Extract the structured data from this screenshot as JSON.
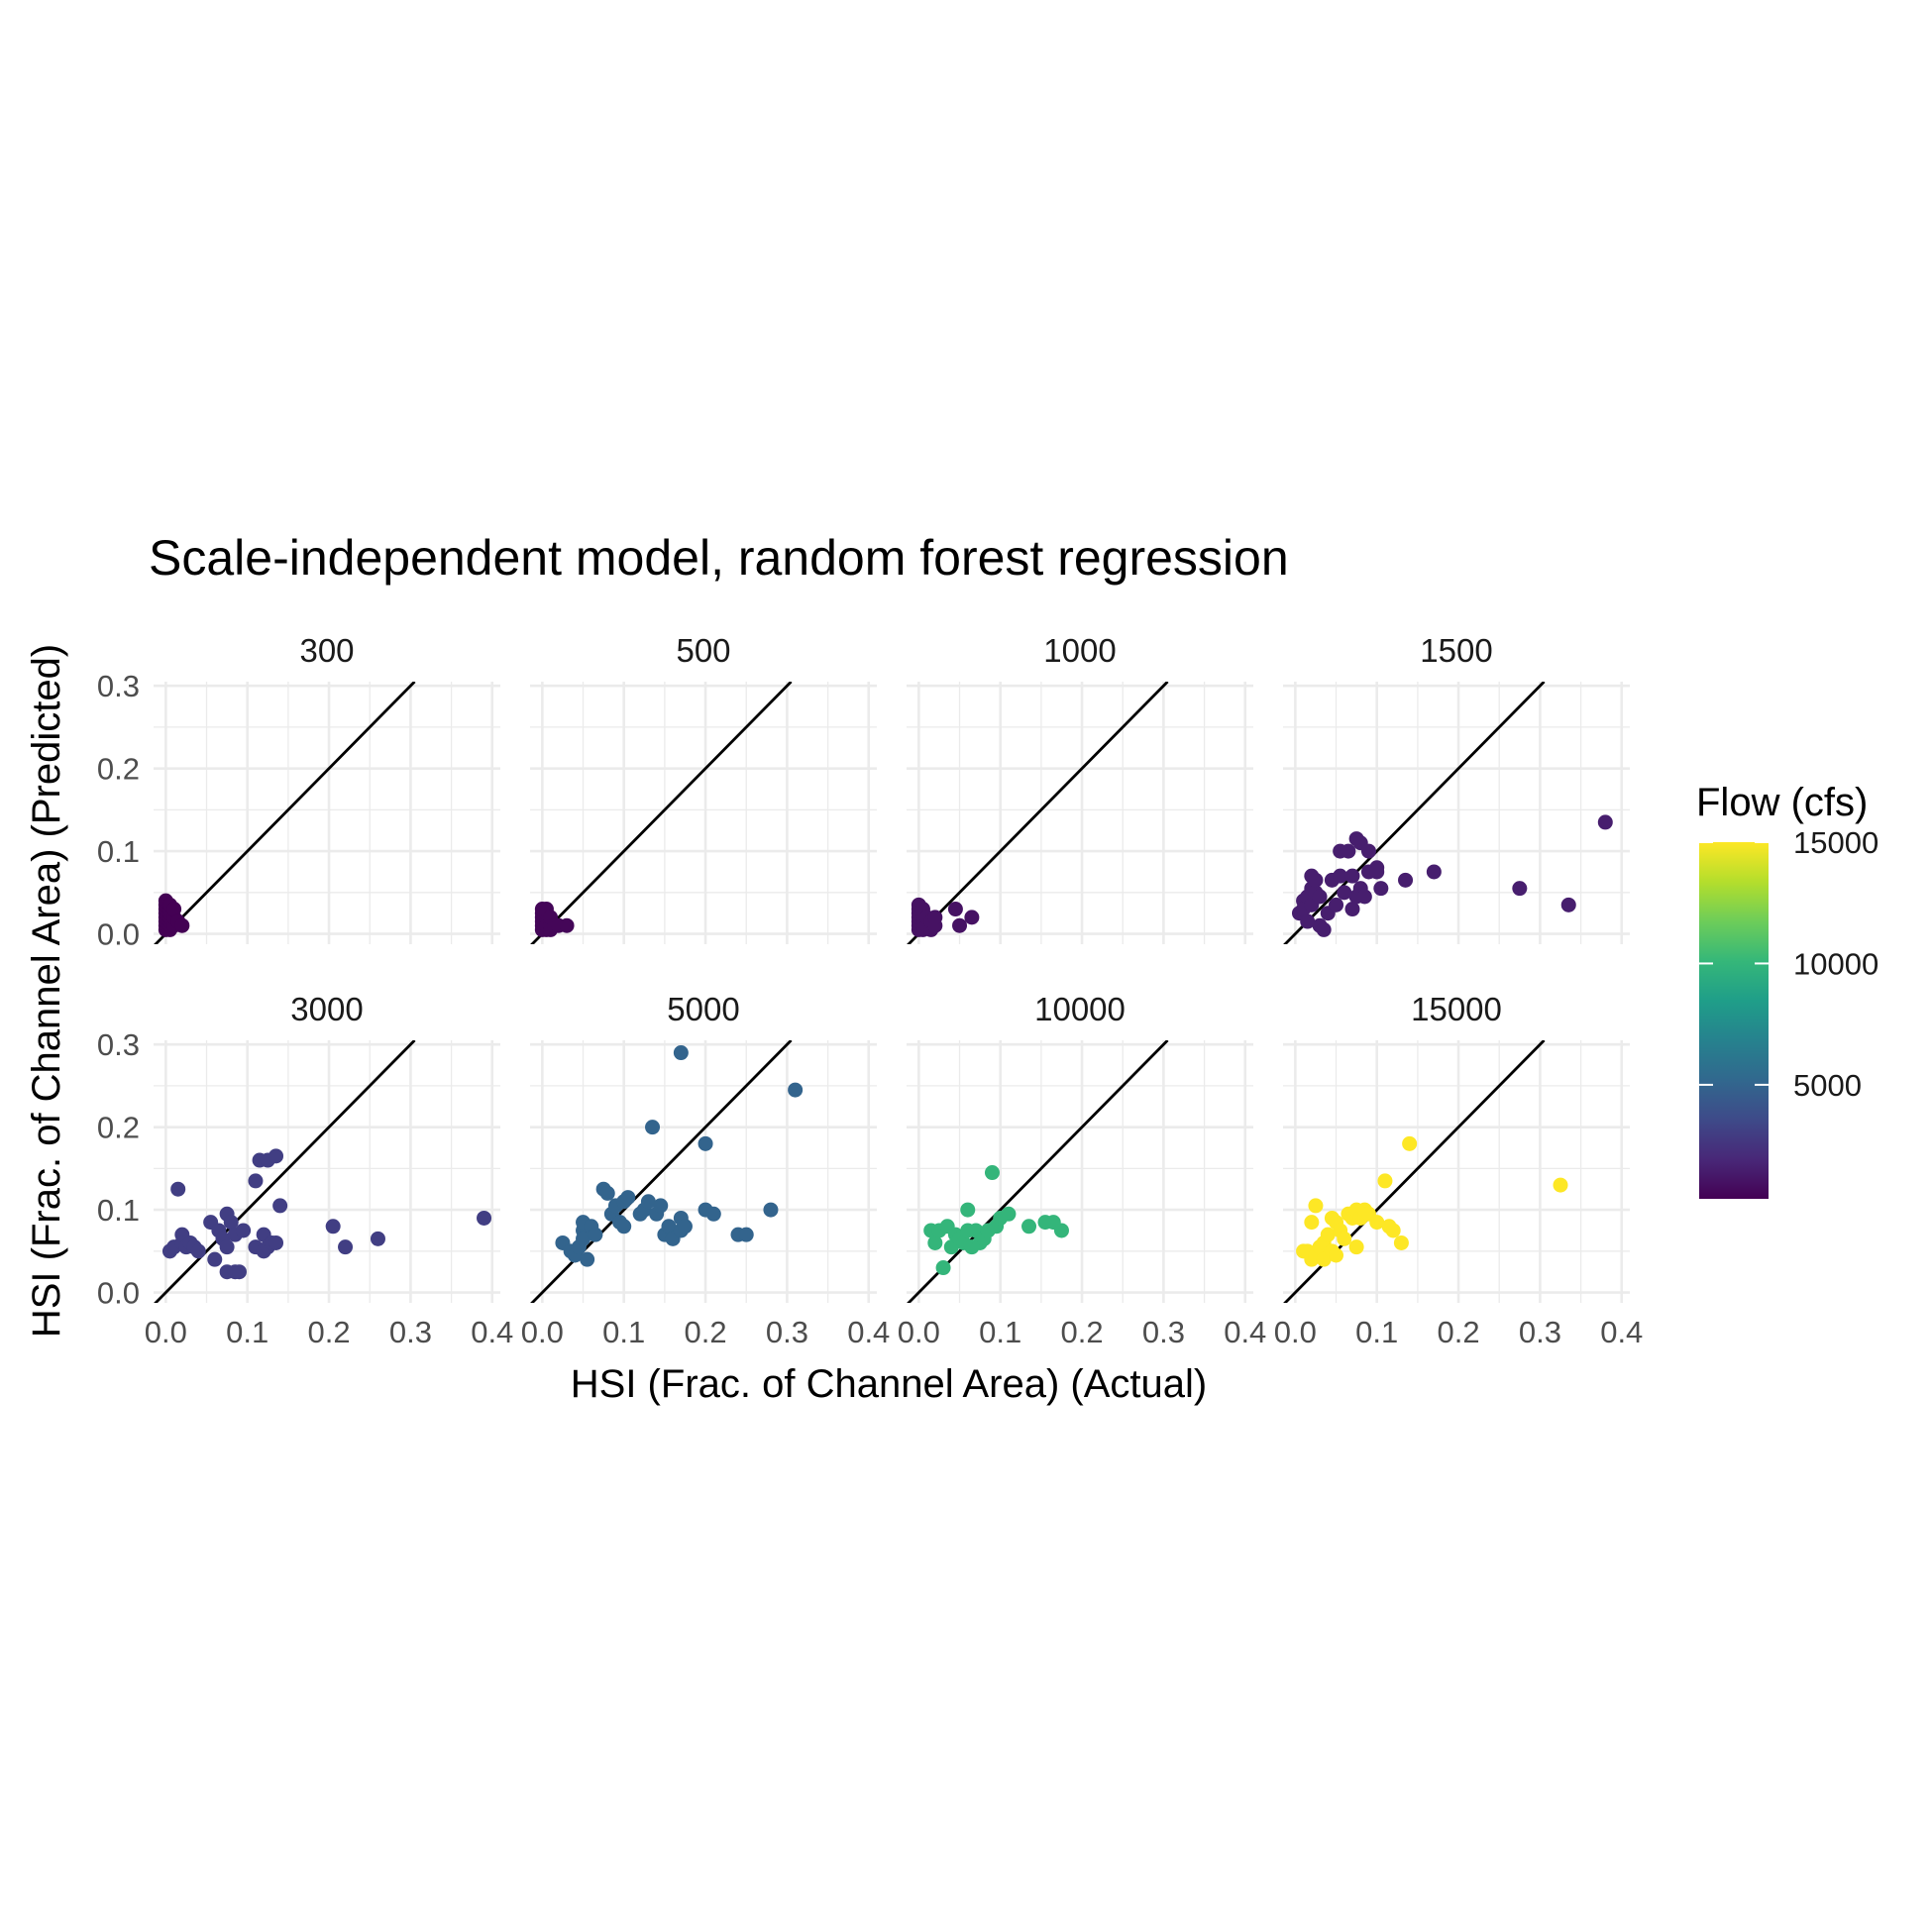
{
  "chart_data": {
    "type": "scatter",
    "title": "Scale-independent model, random forest regression",
    "xlabel": "HSI (Frac. of Channel Area) (Actual)",
    "ylabel": "HSI (Frac. of Channel Area) (Predicted)",
    "xlim": [
      0,
      0.4
    ],
    "ylim": [
      0,
      0.3
    ],
    "xticks": [
      "0.0",
      "0.1",
      "0.2",
      "0.3",
      "0.4"
    ],
    "yticks": [
      "0.0",
      "0.1",
      "0.2",
      "0.3"
    ],
    "reference_line": "y = x",
    "grid": true,
    "legend": {
      "title": "Flow (cfs)",
      "type": "colorbar",
      "position": "right",
      "palette": "viridis",
      "min": 300,
      "max": 15000,
      "ticks": [
        "5000",
        "10000",
        "15000"
      ],
      "colors": [
        "#440154",
        "#482878",
        "#3E4A89",
        "#31688E",
        "#26828E",
        "#1F9E89",
        "#35B779",
        "#6DCD59",
        "#B4DE2C",
        "#FDE725"
      ]
    },
    "panels": [
      {
        "label": "300",
        "flow": 300,
        "points": [
          [
            0.0,
            0.005
          ],
          [
            0.0,
            0.01
          ],
          [
            0.0,
            0.015
          ],
          [
            0.0,
            0.02
          ],
          [
            0.0,
            0.025
          ],
          [
            0.0,
            0.03
          ],
          [
            0.0,
            0.035
          ],
          [
            0.0,
            0.04
          ],
          [
            0.005,
            0.005
          ],
          [
            0.005,
            0.01
          ],
          [
            0.005,
            0.015
          ],
          [
            0.005,
            0.02
          ],
          [
            0.005,
            0.025
          ],
          [
            0.005,
            0.03
          ],
          [
            0.005,
            0.035
          ],
          [
            0.01,
            0.01
          ],
          [
            0.01,
            0.02
          ],
          [
            0.01,
            0.03
          ],
          [
            0.015,
            0.015
          ],
          [
            0.02,
            0.01
          ]
        ]
      },
      {
        "label": "500",
        "flow": 500,
        "points": [
          [
            0.0,
            0.005
          ],
          [
            0.0,
            0.01
          ],
          [
            0.0,
            0.015
          ],
          [
            0.0,
            0.02
          ],
          [
            0.0,
            0.025
          ],
          [
            0.0,
            0.03
          ],
          [
            0.005,
            0.005
          ],
          [
            0.005,
            0.01
          ],
          [
            0.005,
            0.015
          ],
          [
            0.005,
            0.02
          ],
          [
            0.005,
            0.025
          ],
          [
            0.005,
            0.03
          ],
          [
            0.01,
            0.005
          ],
          [
            0.01,
            0.01
          ],
          [
            0.01,
            0.02
          ],
          [
            0.015,
            0.01
          ],
          [
            0.02,
            0.01
          ],
          [
            0.03,
            0.01
          ]
        ]
      },
      {
        "label": "1000",
        "flow": 1000,
        "points": [
          [
            0.0,
            0.005
          ],
          [
            0.0,
            0.01
          ],
          [
            0.0,
            0.015
          ],
          [
            0.0,
            0.02
          ],
          [
            0.0,
            0.025
          ],
          [
            0.0,
            0.03
          ],
          [
            0.0,
            0.035
          ],
          [
            0.005,
            0.005
          ],
          [
            0.005,
            0.01
          ],
          [
            0.005,
            0.015
          ],
          [
            0.005,
            0.02
          ],
          [
            0.005,
            0.025
          ],
          [
            0.005,
            0.03
          ],
          [
            0.01,
            0.01
          ],
          [
            0.01,
            0.02
          ],
          [
            0.015,
            0.005
          ],
          [
            0.015,
            0.015
          ],
          [
            0.02,
            0.01
          ],
          [
            0.02,
            0.02
          ],
          [
            0.045,
            0.03
          ],
          [
            0.05,
            0.01
          ],
          [
            0.065,
            0.02
          ]
        ]
      },
      {
        "label": "1500",
        "flow": 1500,
        "points": [
          [
            0.005,
            0.025
          ],
          [
            0.01,
            0.04
          ],
          [
            0.01,
            0.03
          ],
          [
            0.015,
            0.045
          ],
          [
            0.015,
            0.015
          ],
          [
            0.02,
            0.055
          ],
          [
            0.02,
            0.035
          ],
          [
            0.02,
            0.07
          ],
          [
            0.025,
            0.05
          ],
          [
            0.025,
            0.065
          ],
          [
            0.03,
            0.045
          ],
          [
            0.03,
            0.01
          ],
          [
            0.035,
            0.005
          ],
          [
            0.04,
            0.025
          ],
          [
            0.045,
            0.065
          ],
          [
            0.05,
            0.035
          ],
          [
            0.055,
            0.1
          ],
          [
            0.055,
            0.07
          ],
          [
            0.06,
            0.05
          ],
          [
            0.065,
            0.1
          ],
          [
            0.07,
            0.03
          ],
          [
            0.07,
            0.07
          ],
          [
            0.075,
            0.045
          ],
          [
            0.075,
            0.115
          ],
          [
            0.08,
            0.11
          ],
          [
            0.08,
            0.055
          ],
          [
            0.085,
            0.045
          ],
          [
            0.09,
            0.1
          ],
          [
            0.09,
            0.075
          ],
          [
            0.1,
            0.08
          ],
          [
            0.1,
            0.075
          ],
          [
            0.105,
            0.055
          ],
          [
            0.135,
            0.065
          ],
          [
            0.17,
            0.075
          ],
          [
            0.275,
            0.055
          ],
          [
            0.335,
            0.035
          ],
          [
            0.38,
            0.135
          ]
        ]
      },
      {
        "label": "3000",
        "flow": 3000,
        "points": [
          [
            0.005,
            0.05
          ],
          [
            0.01,
            0.055
          ],
          [
            0.015,
            0.125
          ],
          [
            0.02,
            0.07
          ],
          [
            0.02,
            0.06
          ],
          [
            0.025,
            0.055
          ],
          [
            0.03,
            0.06
          ],
          [
            0.035,
            0.055
          ],
          [
            0.04,
            0.05
          ],
          [
            0.055,
            0.085
          ],
          [
            0.06,
            0.04
          ],
          [
            0.065,
            0.075
          ],
          [
            0.07,
            0.065
          ],
          [
            0.075,
            0.095
          ],
          [
            0.075,
            0.055
          ],
          [
            0.075,
            0.025
          ],
          [
            0.08,
            0.085
          ],
          [
            0.085,
            0.07
          ],
          [
            0.085,
            0.025
          ],
          [
            0.09,
            0.025
          ],
          [
            0.095,
            0.075
          ],
          [
            0.11,
            0.055
          ],
          [
            0.11,
            0.135
          ],
          [
            0.115,
            0.16
          ],
          [
            0.12,
            0.07
          ],
          [
            0.12,
            0.05
          ],
          [
            0.125,
            0.16
          ],
          [
            0.125,
            0.055
          ],
          [
            0.13,
            0.06
          ],
          [
            0.135,
            0.165
          ],
          [
            0.135,
            0.06
          ],
          [
            0.14,
            0.105
          ],
          [
            0.205,
            0.08
          ],
          [
            0.22,
            0.055
          ],
          [
            0.26,
            0.065
          ],
          [
            0.39,
            0.09
          ]
        ]
      },
      {
        "label": "5000",
        "flow": 5000,
        "points": [
          [
            0.025,
            0.06
          ],
          [
            0.035,
            0.05
          ],
          [
            0.04,
            0.045
          ],
          [
            0.045,
            0.055
          ],
          [
            0.05,
            0.075
          ],
          [
            0.05,
            0.065
          ],
          [
            0.05,
            0.085
          ],
          [
            0.055,
            0.04
          ],
          [
            0.06,
            0.08
          ],
          [
            0.065,
            0.07
          ],
          [
            0.075,
            0.125
          ],
          [
            0.08,
            0.12
          ],
          [
            0.085,
            0.095
          ],
          [
            0.09,
            0.105
          ],
          [
            0.095,
            0.085
          ],
          [
            0.1,
            0.11
          ],
          [
            0.1,
            0.08
          ],
          [
            0.105,
            0.115
          ],
          [
            0.12,
            0.095
          ],
          [
            0.125,
            0.1
          ],
          [
            0.13,
            0.11
          ],
          [
            0.135,
            0.2
          ],
          [
            0.14,
            0.095
          ],
          [
            0.145,
            0.105
          ],
          [
            0.15,
            0.07
          ],
          [
            0.155,
            0.08
          ],
          [
            0.16,
            0.065
          ],
          [
            0.17,
            0.075
          ],
          [
            0.17,
            0.09
          ],
          [
            0.17,
            0.29
          ],
          [
            0.175,
            0.08
          ],
          [
            0.2,
            0.18
          ],
          [
            0.2,
            0.1
          ],
          [
            0.21,
            0.095
          ],
          [
            0.24,
            0.07
          ],
          [
            0.25,
            0.07
          ],
          [
            0.28,
            0.1
          ],
          [
            0.31,
            0.245
          ]
        ]
      },
      {
        "label": "10000",
        "flow": 10000,
        "points": [
          [
            0.015,
            0.075
          ],
          [
            0.02,
            0.06
          ],
          [
            0.025,
            0.075
          ],
          [
            0.03,
            0.03
          ],
          [
            0.035,
            0.08
          ],
          [
            0.04,
            0.055
          ],
          [
            0.045,
            0.07
          ],
          [
            0.05,
            0.065
          ],
          [
            0.055,
            0.06
          ],
          [
            0.06,
            0.075
          ],
          [
            0.06,
            0.1
          ],
          [
            0.065,
            0.055
          ],
          [
            0.07,
            0.075
          ],
          [
            0.075,
            0.06
          ],
          [
            0.08,
            0.065
          ],
          [
            0.085,
            0.075
          ],
          [
            0.09,
            0.145
          ],
          [
            0.095,
            0.08
          ],
          [
            0.1,
            0.09
          ],
          [
            0.11,
            0.095
          ],
          [
            0.135,
            0.08
          ],
          [
            0.155,
            0.085
          ],
          [
            0.165,
            0.085
          ],
          [
            0.175,
            0.075
          ]
        ]
      },
      {
        "label": "15000",
        "flow": 15000,
        "points": [
          [
            0.01,
            0.05
          ],
          [
            0.015,
            0.05
          ],
          [
            0.02,
            0.04
          ],
          [
            0.02,
            0.085
          ],
          [
            0.025,
            0.105
          ],
          [
            0.025,
            0.045
          ],
          [
            0.03,
            0.055
          ],
          [
            0.035,
            0.06
          ],
          [
            0.035,
            0.04
          ],
          [
            0.04,
            0.07
          ],
          [
            0.045,
            0.09
          ],
          [
            0.045,
            0.05
          ],
          [
            0.05,
            0.085
          ],
          [
            0.05,
            0.045
          ],
          [
            0.055,
            0.075
          ],
          [
            0.06,
            0.065
          ],
          [
            0.065,
            0.095
          ],
          [
            0.07,
            0.09
          ],
          [
            0.075,
            0.1
          ],
          [
            0.075,
            0.055
          ],
          [
            0.08,
            0.09
          ],
          [
            0.085,
            0.1
          ],
          [
            0.09,
            0.095
          ],
          [
            0.1,
            0.085
          ],
          [
            0.11,
            0.135
          ],
          [
            0.115,
            0.08
          ],
          [
            0.12,
            0.075
          ],
          [
            0.13,
            0.06
          ],
          [
            0.14,
            0.18
          ],
          [
            0.325,
            0.13
          ]
        ]
      }
    ]
  }
}
